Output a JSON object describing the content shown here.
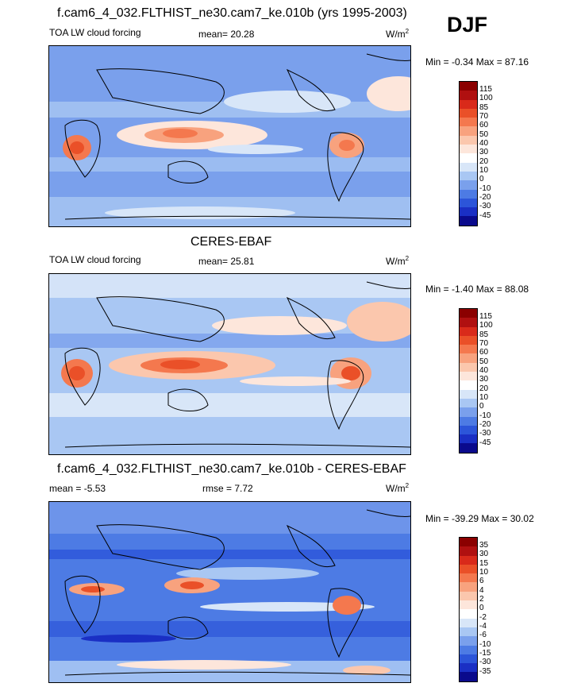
{
  "season": "DJF",
  "units": {
    "base": "W/m",
    "exp": "2"
  },
  "panels": [
    {
      "title": "f.cam6_4_032.FLTHIST_ne30.cam7_ke.010b (yrs 1995-2003)",
      "variable": "TOA LW cloud forcing",
      "stat_text": "mean=  20.28",
      "extra_text": "",
      "minmax_text": "Min =  -0.34 Max =  87.16",
      "levels": [
        "115",
        "100",
        "85",
        "70",
        "60",
        "50",
        "40",
        "30",
        "20",
        "10",
        "0",
        "-10",
        "-20",
        "-30",
        "-45"
      ]
    },
    {
      "title": "CERES-EBAF",
      "variable": "TOA LW cloud forcing",
      "stat_text": "mean=  25.81",
      "extra_text": "",
      "minmax_text": "Min =  -1.40 Max =  88.08",
      "levels": [
        "115",
        "100",
        "85",
        "70",
        "60",
        "50",
        "40",
        "30",
        "20",
        "10",
        "0",
        "-10",
        "-20",
        "-30",
        "-45"
      ]
    },
    {
      "title": "f.cam6_4_032.FLTHIST_ne30.cam7_ke.010b - CERES-EBAF",
      "variable": "",
      "stat_text": "mean =  -5.53",
      "extra_text": "rmse =   7.72",
      "minmax_text": "Min = -39.29 Max =  30.02",
      "levels": [
        "35",
        "30",
        "15",
        "10",
        "6",
        "4",
        "2",
        "0",
        "-2",
        "-4",
        "-6",
        "-10",
        "-15",
        "-30",
        "-35"
      ]
    }
  ],
  "colors": {
    "abs": [
      "#8b0000",
      "#b01010",
      "#d92a1a",
      "#ea5028",
      "#f4784e",
      "#f8a27e",
      "#fbc7ad",
      "#fde6db",
      "#ffffff",
      "#d8e6f8",
      "#a9c7f3",
      "#7aa0ec",
      "#4d7be4",
      "#2c55d9",
      "#1a2fc4",
      "#0a0a8c"
    ],
    "diff": [
      "#8b0000",
      "#b01010",
      "#d92a1a",
      "#ea5028",
      "#f4784e",
      "#f8a27e",
      "#fbc7ad",
      "#fde6db",
      "#ffffff",
      "#d8e6f8",
      "#a9c7f3",
      "#7aa0ec",
      "#4d7be4",
      "#2c55d9",
      "#1a2fc4",
      "#0a0a8c"
    ]
  },
  "chart_data": [
    {
      "type": "heatmap",
      "title": "f.cam6_4_032.FLTHIST_ne30.cam7_ke.010b (yrs 1995-2003)",
      "subtitle": "TOA LW cloud forcing",
      "mean": 20.28,
      "min": -0.34,
      "max": 87.16,
      "units": "W/m2",
      "contour_levels": [
        -45,
        -30,
        -20,
        -10,
        0,
        10,
        20,
        30,
        40,
        50,
        60,
        70,
        85,
        100,
        115
      ]
    },
    {
      "type": "heatmap",
      "title": "CERES-EBAF",
      "subtitle": "TOA LW cloud forcing",
      "mean": 25.81,
      "min": -1.4,
      "max": 88.08,
      "units": "W/m2",
      "contour_levels": [
        -45,
        -30,
        -20,
        -10,
        0,
        10,
        20,
        30,
        40,
        50,
        60,
        70,
        85,
        100,
        115
      ]
    },
    {
      "type": "heatmap",
      "title": "f.cam6_4_032.FLTHIST_ne30.cam7_ke.010b - CERES-EBAF",
      "mean": -5.53,
      "rmse": 7.72,
      "min": -39.29,
      "max": 30.02,
      "units": "W/m2",
      "contour_levels": [
        -35,
        -30,
        -15,
        -10,
        -6,
        -4,
        -2,
        0,
        2,
        4,
        6,
        10,
        15,
        30,
        35
      ]
    }
  ]
}
